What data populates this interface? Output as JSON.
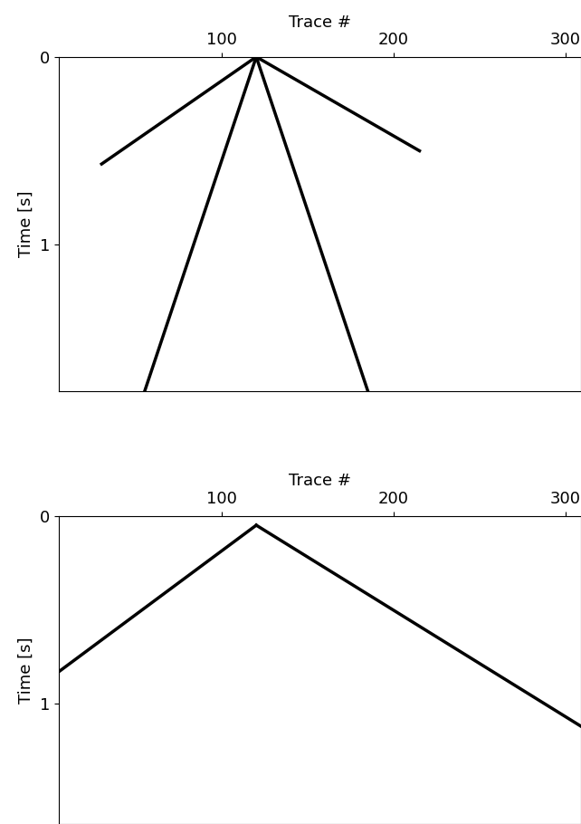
{
  "chart_data": [
    {
      "type": "line",
      "xlabel": "Trace #",
      "ylabel": "Time [s]",
      "xlim": [
        5,
        309
      ],
      "xticks": [
        100,
        200,
        300
      ],
      "ylim": [
        1.78,
        0
      ],
      "yticks": [
        0,
        1
      ],
      "series": [
        {
          "color": "#000000",
          "x": [
            120,
            30
          ],
          "values": [
            0.0,
            0.57
          ]
        },
        {
          "color": "#000000",
          "x": [
            120,
            215
          ],
          "values": [
            0.0,
            0.5
          ]
        },
        {
          "color": "#000000",
          "x": [
            120,
            55
          ],
          "values": [
            0.0,
            1.78
          ]
        },
        {
          "color": "#000000",
          "x": [
            120,
            185
          ],
          "values": [
            0.0,
            1.78
          ]
        }
      ]
    },
    {
      "type": "line",
      "xlabel": "Trace #",
      "ylabel": "Time [s]",
      "xlim": [
        5,
        309
      ],
      "xticks": [
        100,
        200,
        300
      ],
      "ylim": [
        1.64,
        0
      ],
      "yticks": [
        0,
        1
      ],
      "series": [
        {
          "color": "#000000",
          "x": [
            120,
            5
          ],
          "values": [
            0.05,
            0.83
          ]
        },
        {
          "color": "#000000",
          "x": [
            120,
            309
          ],
          "values": [
            0.05,
            1.12
          ]
        }
      ]
    }
  ]
}
